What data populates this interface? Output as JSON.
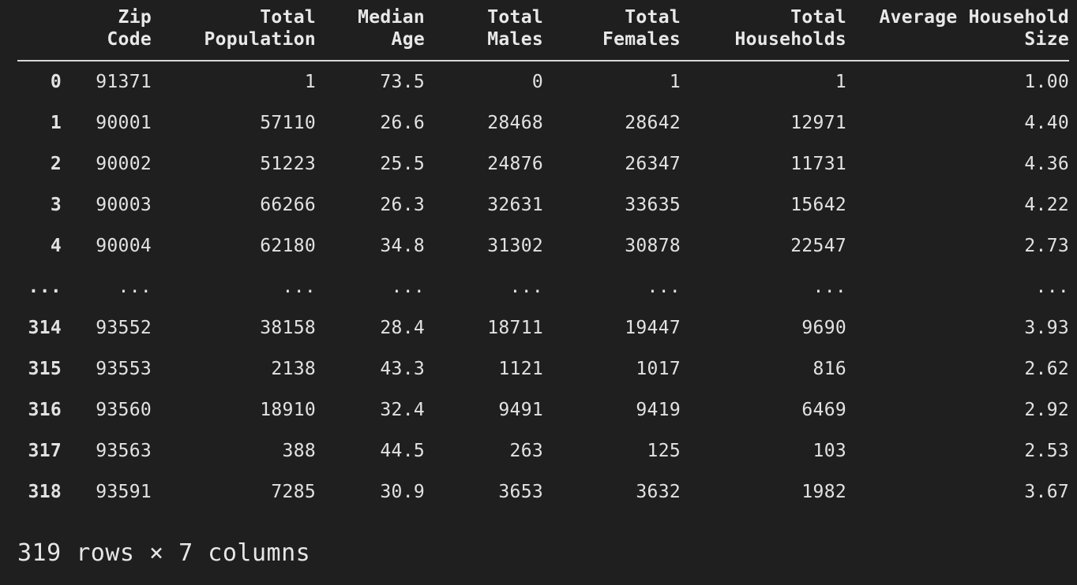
{
  "table": {
    "columns": [
      "Zip\nCode",
      "Total\nPopulation",
      "Median\nAge",
      "Total\nMales",
      "Total\nFemales",
      "Total\nHouseholds",
      "Average Household\nSize"
    ],
    "rows": [
      {
        "index": "0",
        "cells": [
          "91371",
          "1",
          "73.5",
          "0",
          "1",
          "1",
          "1.00"
        ]
      },
      {
        "index": "1",
        "cells": [
          "90001",
          "57110",
          "26.6",
          "28468",
          "28642",
          "12971",
          "4.40"
        ]
      },
      {
        "index": "2",
        "cells": [
          "90002",
          "51223",
          "25.5",
          "24876",
          "26347",
          "11731",
          "4.36"
        ]
      },
      {
        "index": "3",
        "cells": [
          "90003",
          "66266",
          "26.3",
          "32631",
          "33635",
          "15642",
          "4.22"
        ]
      },
      {
        "index": "4",
        "cells": [
          "90004",
          "62180",
          "34.8",
          "31302",
          "30878",
          "22547",
          "2.73"
        ]
      },
      {
        "index": "...",
        "cells": [
          "...",
          "...",
          "...",
          "...",
          "...",
          "...",
          "..."
        ]
      },
      {
        "index": "314",
        "cells": [
          "93552",
          "38158",
          "28.4",
          "18711",
          "19447",
          "9690",
          "3.93"
        ]
      },
      {
        "index": "315",
        "cells": [
          "93553",
          "2138",
          "43.3",
          "1121",
          "1017",
          "816",
          "2.62"
        ]
      },
      {
        "index": "316",
        "cells": [
          "93560",
          "18910",
          "32.4",
          "9491",
          "9419",
          "6469",
          "2.92"
        ]
      },
      {
        "index": "317",
        "cells": [
          "93563",
          "388",
          "44.5",
          "263",
          "125",
          "103",
          "2.53"
        ]
      },
      {
        "index": "318",
        "cells": [
          "93591",
          "7285",
          "30.9",
          "3653",
          "3632",
          "1982",
          "3.67"
        ]
      }
    ]
  },
  "footer": {
    "shape_text": "319 rows × 7 columns"
  },
  "colors": {
    "background": "#1f1f1f",
    "text": "#e6e6e6",
    "rule": "#d8d8d8"
  }
}
